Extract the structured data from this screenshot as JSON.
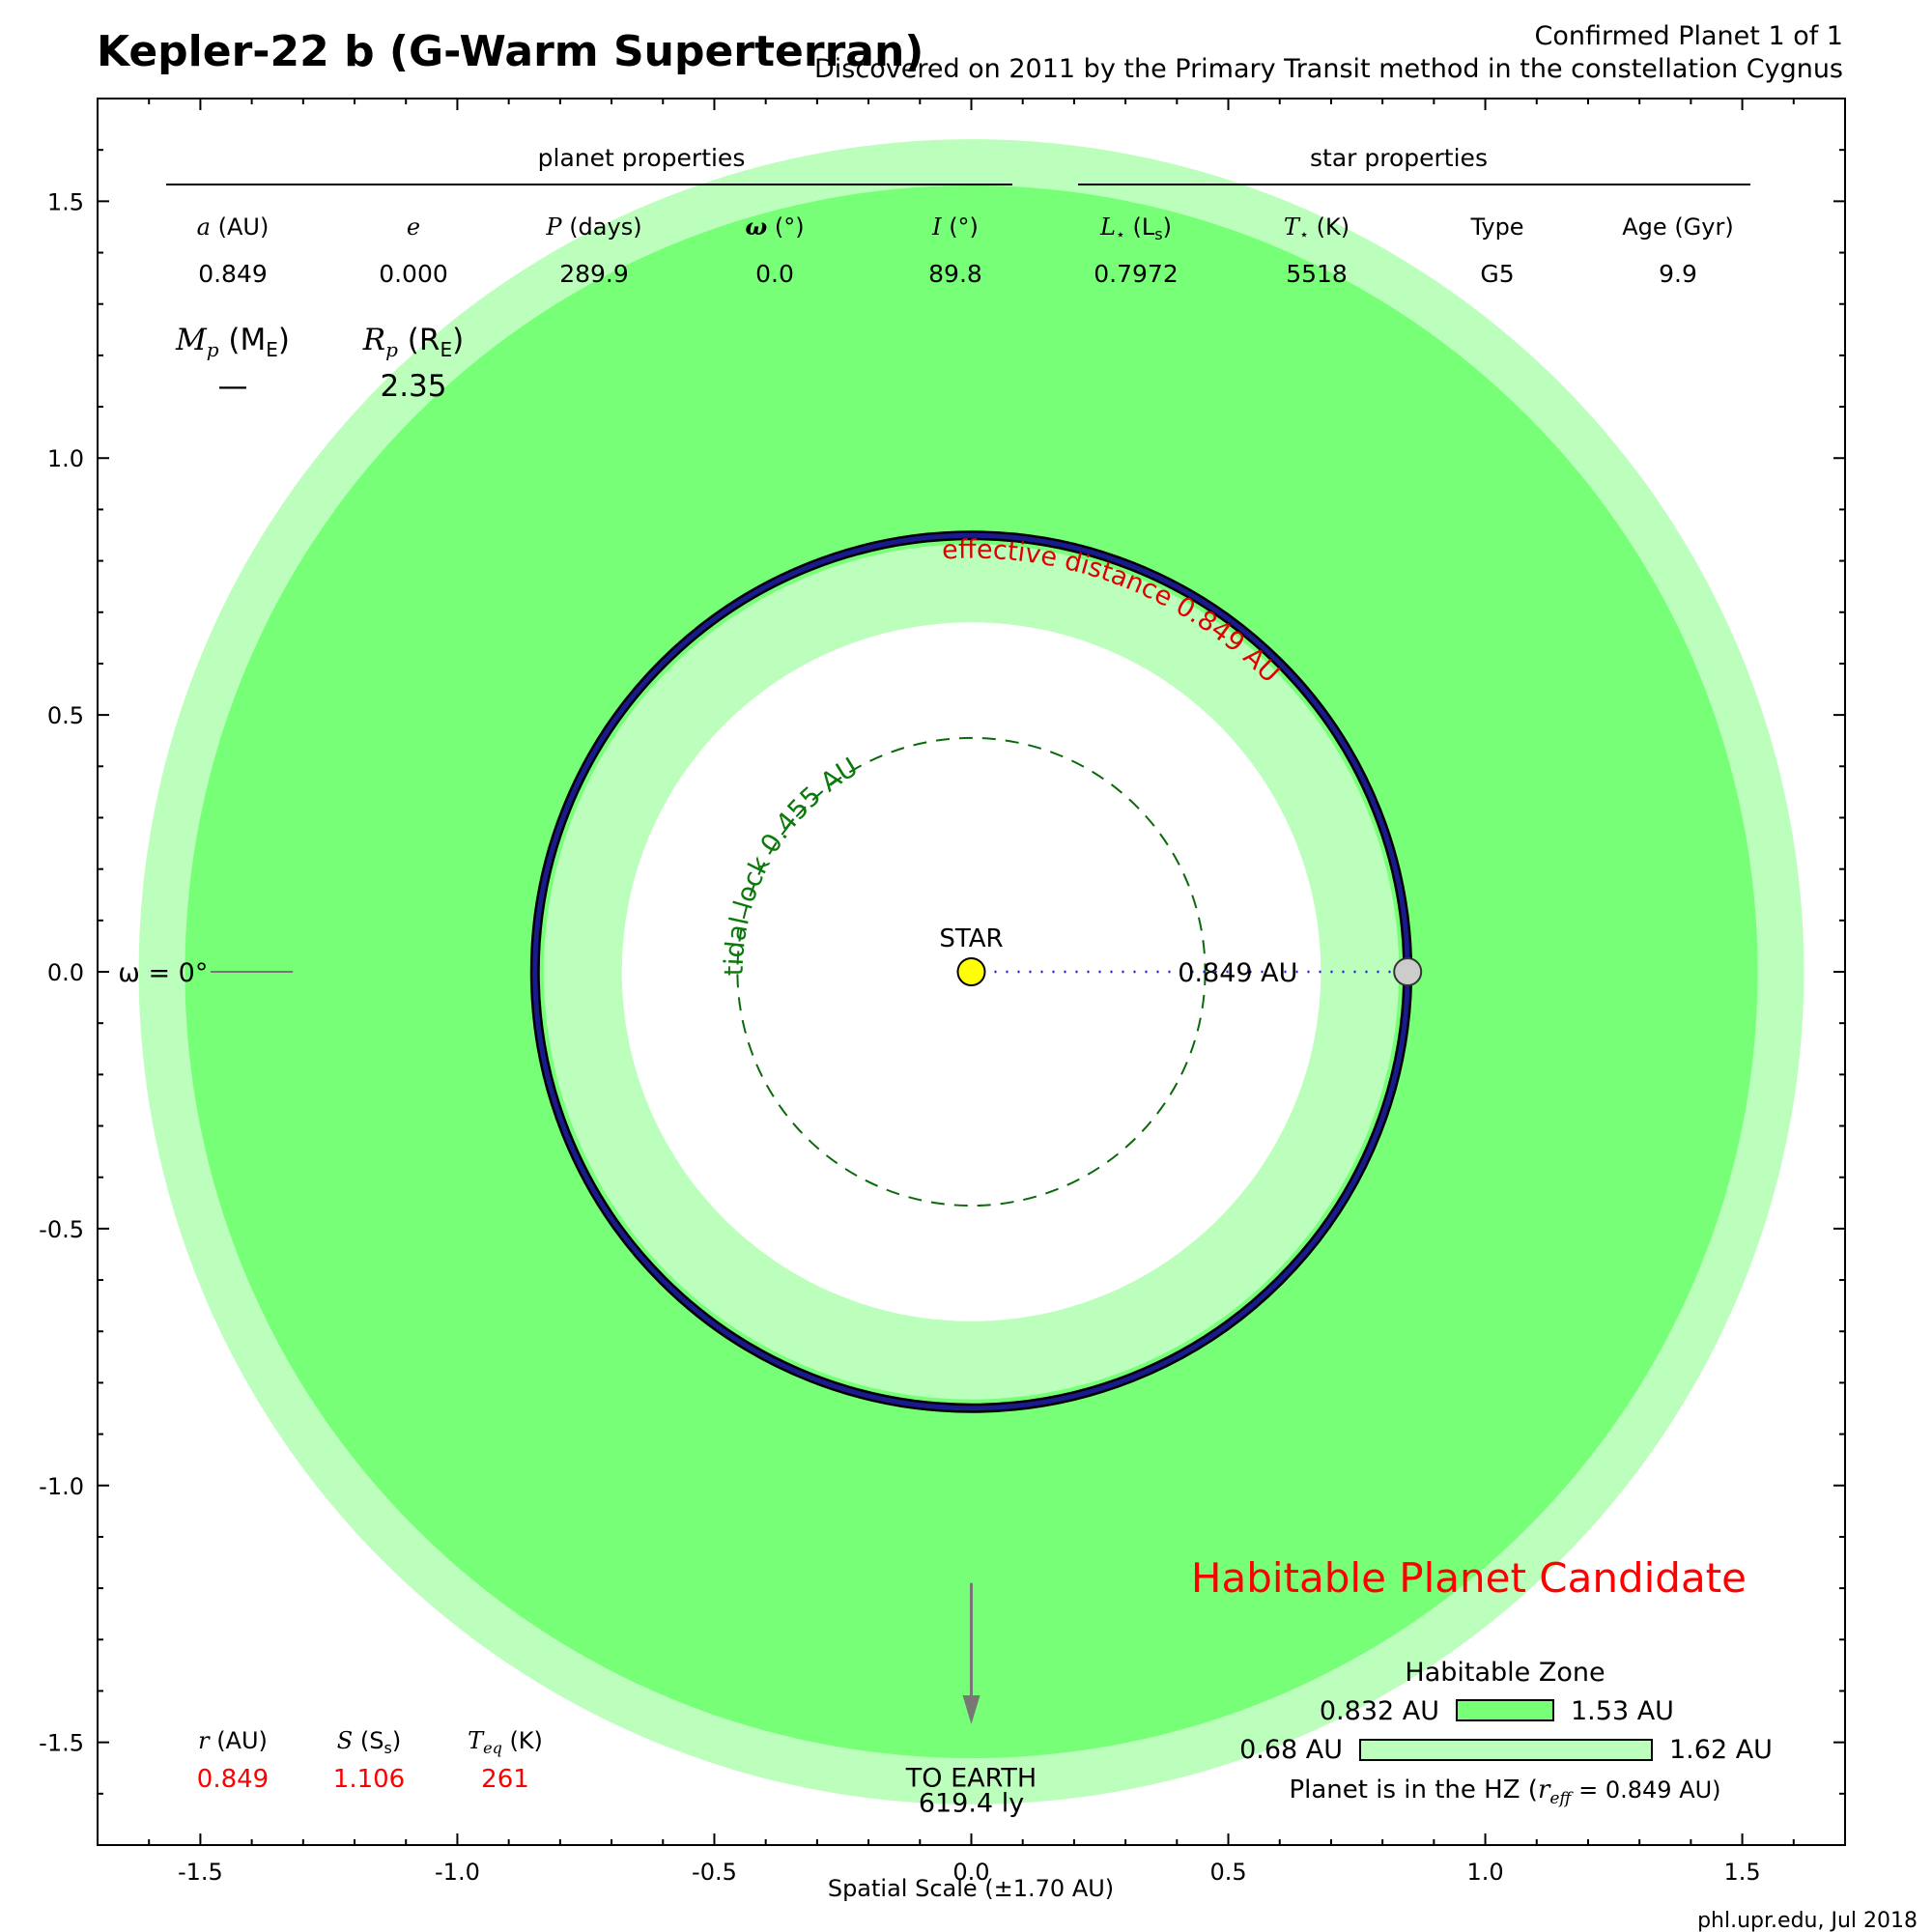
{
  "chart_data": {
    "type": "scatter",
    "title": "Kepler-22 b (G-Warm Superterran)",
    "subtitle_line1": "Confirmed Planet 1 of 1",
    "subtitle_line2": "Discovered on 2011 by the Primary Transit method in the constellation Cygnus",
    "xlabel": "Spatial Scale (±1.70 AU)",
    "xlim": [
      -1.7,
      1.7
    ],
    "ylim": [
      -1.7,
      1.7
    ],
    "xticks": [
      -1.5,
      -1.0,
      -0.5,
      0.0,
      0.5,
      1.0,
      1.5
    ],
    "yticks": [
      1.5,
      1.0,
      0.5,
      0.0,
      -0.5,
      -1.0,
      -1.5
    ],
    "xtick_labels": [
      "-1.5",
      "-1.0",
      "-0.5",
      "0.0",
      "0.5",
      "1.0",
      "1.5"
    ],
    "ytick_labels": [
      "1.5",
      "1.0",
      "0.5",
      "0.0",
      "-0.5",
      "-1.0",
      "-1.5"
    ],
    "grid": false,
    "habitable_zone": {
      "optimistic_inner_au": 0.68,
      "conservative_inner_au": 0.832,
      "conservative_outer_au": 1.53,
      "optimistic_outer_au": 1.62,
      "color_conservative": "#78ff78",
      "color_optimistic": "#bcffbc"
    },
    "orbit": {
      "semi_major_axis_au": 0.849,
      "color": "#1a1a8c"
    },
    "planet": {
      "x": 0.849,
      "y": 0.0,
      "color": "#cccccc"
    },
    "star": {
      "x": 0.0,
      "y": 0.0,
      "color": "#ffff00",
      "label": "STAR"
    },
    "tidal_lock_radius_au": 0.455,
    "tidal_lock_label": "tidal lock 0.455 AU",
    "effective_distance_label": "effective distance 0.849 AU",
    "distance_label": "0.849 AU",
    "omega_label": "ω = 0°",
    "earth_label_line1": "TO EARTH",
    "earth_label_line2": "619.4 ly",
    "status_label": "Habitable Planet Candidate",
    "status_color": "#ff0000",
    "credit": "phl.upr.edu, Jul 2018",
    "planet_properties": {
      "header": "planet properties",
      "columns": [
        {
          "label": "a",
          "unit": " (AU)",
          "value": "0.849"
        },
        {
          "label": "e",
          "unit": "",
          "value": "0.000"
        },
        {
          "label": "P",
          "unit": " (days)",
          "value": "289.9"
        },
        {
          "label": "ω",
          "unit": " (°)",
          "value": "0.0"
        },
        {
          "label": "I",
          "unit": " (°)",
          "value": "89.8"
        }
      ],
      "mass_label": "M",
      "mass_sub": "p",
      "mass_unit": "M",
      "mass_unit_sub": "E",
      "mass_value": "—",
      "radius_label": "R",
      "radius_sub": "p",
      "radius_unit": "R",
      "radius_unit_sub": "E",
      "radius_value": "2.35"
    },
    "star_properties": {
      "header": "star properties",
      "columns": [
        {
          "label": "L",
          "sub": "⋆",
          "unit_main": "L",
          "unit_sub": "s",
          "value": "0.7972"
        },
        {
          "label": "T",
          "sub": "⋆",
          "unit_main": "K",
          "unit_sub": "",
          "value": "5518"
        },
        {
          "label": "Type",
          "value": "G5"
        },
        {
          "label": "Age (Gyr)",
          "value": "9.9"
        }
      ]
    },
    "current_conditions": [
      {
        "label": "r",
        "unit": " (AU)",
        "value": "0.849"
      },
      {
        "label": "S",
        "unit": " (S",
        "unit_sub": "s",
        "unit_close": ")",
        "value": "1.106"
      },
      {
        "label": "T",
        "label_sub": "eq",
        "unit": " (K)",
        "value": "261"
      }
    ],
    "hz_legend": {
      "title": "Habitable Zone",
      "conservative_inner": "0.832 AU",
      "conservative_outer": "1.53 AU",
      "optimistic_inner": "0.68 AU",
      "optimistic_outer": "1.62 AU",
      "status_prefix": "Planet is in the HZ (",
      "reff_label": "r",
      "reff_sub": "eff",
      "status_suffix": " = 0.849 AU)"
    }
  }
}
